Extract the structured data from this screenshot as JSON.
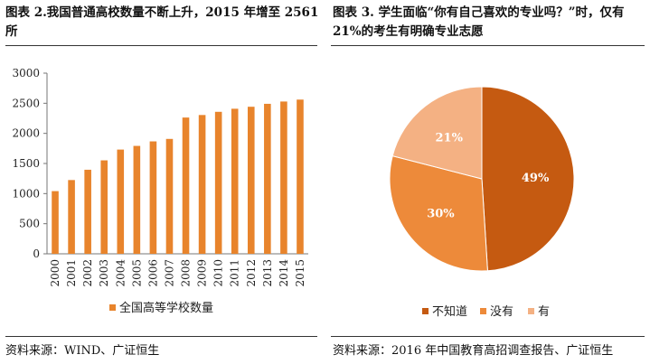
{
  "left_panel": {
    "title": "图表 2.我国普通高校数量不断上升，2015 年增至 2561 所",
    "source": "资料来源：WIND、广证恒生"
  },
  "right_panel": {
    "title": "图表 3. 学生面临“你有自己喜欢的专业吗？”时，仅有 21%的考生有明确专业志愿",
    "source": "资料来源：2016 年中国教育高招调查报告、广证恒生"
  },
  "chart_data": [
    {
      "type": "bar",
      "categories": [
        "2000",
        "2001",
        "2002",
        "2003",
        "2004",
        "2005",
        "2006",
        "2007",
        "2008",
        "2009",
        "2010",
        "2011",
        "2012",
        "2013",
        "2014",
        "2015"
      ],
      "series": [
        {
          "name": "全国高等学校数量",
          "values": [
            1041,
            1225,
            1396,
            1552,
            1731,
            1792,
            1867,
            1908,
            2263,
            2305,
            2358,
            2409,
            2442,
            2491,
            2529,
            2561
          ]
        }
      ],
      "ylim": [
        0,
        3000
      ],
      "yticks": [
        "0",
        "500",
        "1000",
        "1500",
        "2000",
        "2500",
        "3000"
      ],
      "grid": false,
      "legend": "bottom",
      "color": "#E8842C"
    },
    {
      "type": "pie",
      "slices": [
        {
          "name": "不知道",
          "value": 49,
          "label": "49%",
          "color": "#C55A11"
        },
        {
          "name": "没有",
          "value": 30,
          "label": "30%",
          "color": "#ED8A3A"
        },
        {
          "name": "有",
          "value": 21,
          "label": "21%",
          "color": "#F4B183"
        }
      ],
      "legend": "bottom"
    }
  ]
}
